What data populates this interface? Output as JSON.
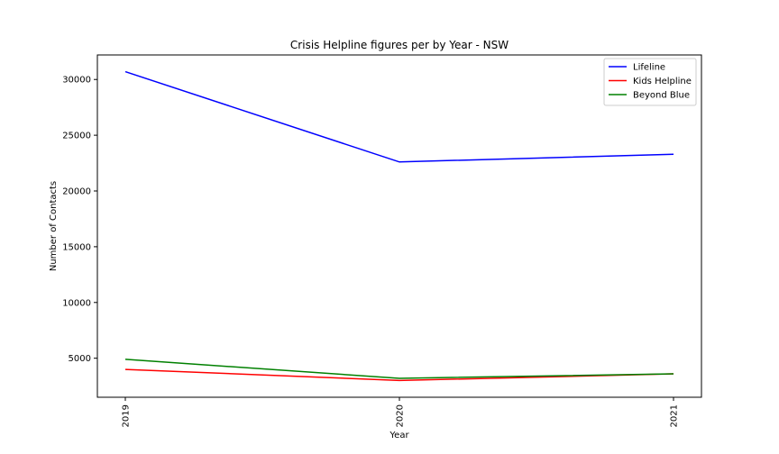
{
  "chart_data": {
    "type": "line",
    "title": "Crisis Helpline figures per by Year - NSW",
    "xlabel": "Year",
    "ylabel": "Number of Contacts",
    "categories": [
      "2019",
      "2020",
      "2021"
    ],
    "yticks": [
      5000,
      10000,
      15000,
      20000,
      25000,
      30000
    ],
    "ylim": [
      1500,
      32200
    ],
    "legend_position": "top-right",
    "grid": false,
    "series": [
      {
        "name": "Lifeline",
        "color": "#0000ff",
        "values": [
          30700,
          22600,
          23300
        ]
      },
      {
        "name": "Kids Helpline",
        "color": "#ff0000",
        "values": [
          4000,
          3000,
          3600
        ]
      },
      {
        "name": "Beyond Blue",
        "color": "#008000",
        "values": [
          4900,
          3200,
          3600
        ]
      }
    ]
  }
}
